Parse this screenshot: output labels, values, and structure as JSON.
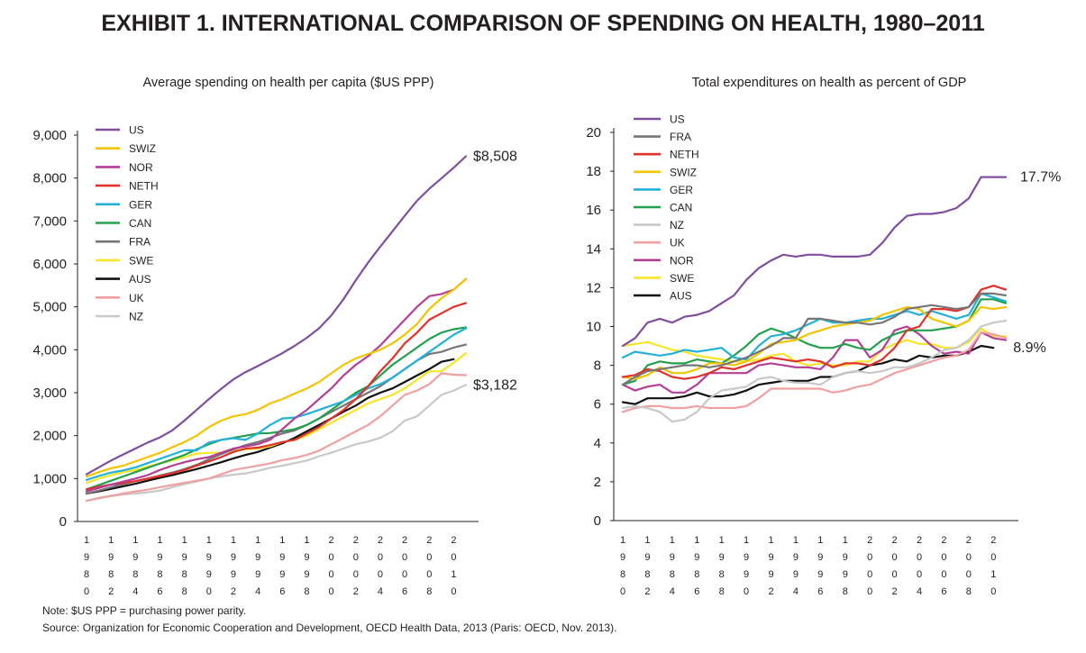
{
  "title": "EXHIBIT 1. INTERNATIONAL COMPARISON OF SPENDING ON HEALTH, 1980–2011",
  "notes": {
    "note": "Note: $US PPP = purchasing power parity.",
    "source": "Source: Organization for Economic Cooperation and Development, OECD Health Data, 2013 (Paris: OECD, Nov. 2013)."
  },
  "colors": {
    "US": "#7f4f9e",
    "SWIZ": "#f5c400",
    "NOR": "#b43e96",
    "NETH": "#e0312b",
    "GER": "#22b1d8",
    "CAN": "#22a04d",
    "FRA": "#767676",
    "SWE": "#f7e52a",
    "AUS": "#111111",
    "UK": "#f0a0a0",
    "NZ": "#c8c8c8"
  },
  "chart_data": [
    {
      "type": "line",
      "title": "Average spending on health per capita ($US PPP)",
      "xlabel": "",
      "ylabel": "",
      "x": [
        1980,
        1981,
        1982,
        1983,
        1984,
        1985,
        1986,
        1987,
        1988,
        1989,
        1990,
        1991,
        1992,
        1993,
        1994,
        1995,
        1996,
        1997,
        1998,
        1999,
        2000,
        2001,
        2002,
        2003,
        2004,
        2005,
        2006,
        2007,
        2008,
        2009,
        2010,
        2011
      ],
      "xlim": [
        1980,
        2011
      ],
      "ylim": [
        0,
        9000
      ],
      "yticks": [
        "0",
        "1,000",
        "2,000",
        "3,000",
        "4,000",
        "5,000",
        "6,000",
        "7,000",
        "8,000",
        "9,000"
      ],
      "xticks": [
        "1980",
        "1982",
        "1984",
        "1986",
        "1988",
        "1990",
        "1992",
        "1994",
        "1996",
        "1998",
        "2000",
        "2002",
        "2004",
        "2006",
        "2008",
        "2010"
      ],
      "annotations": [
        "$8,508",
        "$3,182"
      ],
      "legend": [
        "US",
        "SWIZ",
        "NOR",
        "NETH",
        "GER",
        "CAN",
        "FRA",
        "SWE",
        "AUS",
        "UK",
        "NZ"
      ],
      "series": [
        {
          "name": "US",
          "values": [
            1100,
            1260,
            1420,
            1560,
            1700,
            1840,
            1960,
            2120,
            2350,
            2600,
            2850,
            3090,
            3310,
            3480,
            3620,
            3770,
            3920,
            4090,
            4280,
            4500,
            4800,
            5180,
            5620,
            6030,
            6400,
            6760,
            7120,
            7470,
            7750,
            7990,
            8240,
            8508
          ]
        },
        {
          "name": "SWIZ",
          "values": [
            1050,
            1150,
            1240,
            1300,
            1400,
            1500,
            1600,
            1730,
            1850,
            2000,
            2200,
            2350,
            2450,
            2500,
            2600,
            2750,
            2850,
            2980,
            3100,
            3250,
            3450,
            3650,
            3800,
            3900,
            4000,
            4150,
            4350,
            4600,
            4950,
            5200,
            5400,
            5650
          ]
        },
        {
          "name": "NOR",
          "values": [
            700,
            780,
            860,
            930,
            1000,
            1080,
            1200,
            1300,
            1380,
            1450,
            1500,
            1600,
            1700,
            1750,
            1800,
            1900,
            2150,
            2400,
            2600,
            2850,
            3100,
            3400,
            3650,
            3850,
            4100,
            4400,
            4700,
            5000,
            5250,
            5300,
            5400,
            5650
          ]
        },
        {
          "name": "NETH",
          "values": [
            750,
            810,
            860,
            900,
            940,
            1000,
            1060,
            1120,
            1200,
            1300,
            1400,
            1500,
            1620,
            1700,
            1720,
            1780,
            1850,
            1900,
            2050,
            2200,
            2400,
            2600,
            2850,
            3150,
            3500,
            3800,
            4150,
            4400,
            4700,
            4850,
            5000,
            5090
          ]
        },
        {
          "name": "GER",
          "values": [
            970,
            1060,
            1140,
            1190,
            1260,
            1360,
            1460,
            1560,
            1660,
            1660,
            1840,
            1900,
            1940,
            1900,
            2050,
            2250,
            2400,
            2420,
            2500,
            2600,
            2700,
            2800,
            2950,
            3100,
            3200,
            3350,
            3550,
            3750,
            3950,
            4150,
            4350,
            4500
          ]
        },
        {
          "name": "CAN",
          "values": [
            750,
            850,
            950,
            1050,
            1150,
            1250,
            1350,
            1450,
            1550,
            1680,
            1800,
            1900,
            1950,
            2000,
            2050,
            2060,
            2100,
            2150,
            2250,
            2400,
            2600,
            2800,
            3000,
            3150,
            3400,
            3650,
            3850,
            4050,
            4250,
            4400,
            4480,
            4520
          ]
        },
        {
          "name": "FRA",
          "values": [
            650,
            720,
            800,
            870,
            940,
            1000,
            1070,
            1140,
            1220,
            1320,
            1450,
            1570,
            1680,
            1780,
            1850,
            1950,
            2050,
            2120,
            2250,
            2400,
            2550,
            2700,
            2850,
            3000,
            3150,
            3350,
            3550,
            3750,
            3900,
            3950,
            4050,
            4120
          ]
        },
        {
          "name": "SWE",
          "values": [
            900,
            1000,
            1080,
            1150,
            1200,
            1280,
            1350,
            1420,
            1500,
            1580,
            1600,
            1600,
            1650,
            1680,
            1700,
            1750,
            1850,
            1900,
            2000,
            2150,
            2300,
            2450,
            2600,
            2750,
            2850,
            2950,
            3100,
            3300,
            3500,
            3500,
            3700,
            3920
          ]
        },
        {
          "name": "AUS",
          "values": [
            650,
            700,
            760,
            820,
            880,
            950,
            1020,
            1080,
            1150,
            1220,
            1300,
            1380,
            1470,
            1550,
            1620,
            1720,
            1820,
            1950,
            2100,
            2250,
            2400,
            2560,
            2700,
            2880,
            3000,
            3100,
            3250,
            3400,
            3550,
            3720,
            3780,
            null
          ]
        },
        {
          "name": "UK",
          "values": [
            480,
            550,
            600,
            650,
            700,
            740,
            800,
            850,
            900,
            950,
            1000,
            1100,
            1200,
            1250,
            1300,
            1350,
            1430,
            1480,
            1550,
            1650,
            1800,
            1950,
            2100,
            2250,
            2450,
            2700,
            2950,
            3050,
            3200,
            3450,
            3420,
            3410
          ]
        },
        {
          "name": "NZ",
          "values": [
            480,
            540,
            590,
            630,
            650,
            680,
            720,
            800,
            870,
            930,
            1000,
            1050,
            1090,
            1120,
            1180,
            1250,
            1300,
            1360,
            1420,
            1520,
            1600,
            1700,
            1800,
            1860,
            1950,
            2100,
            2350,
            2450,
            2700,
            2950,
            3050,
            3182
          ]
        }
      ]
    },
    {
      "type": "line",
      "title": "Total expenditures on health as percent of GDP",
      "xlabel": "",
      "ylabel": "",
      "x": [
        1980,
        1981,
        1982,
        1983,
        1984,
        1985,
        1986,
        1987,
        1988,
        1989,
        1990,
        1991,
        1992,
        1993,
        1994,
        1995,
        1996,
        1997,
        1998,
        1999,
        2000,
        2001,
        2002,
        2003,
        2004,
        2005,
        2006,
        2007,
        2008,
        2009,
        2010,
        2011
      ],
      "xlim": [
        1980,
        2011
      ],
      "ylim": [
        0,
        20
      ],
      "yticks": [
        "0",
        "2",
        "4",
        "6",
        "8",
        "10",
        "12",
        "14",
        "16",
        "18",
        "20"
      ],
      "xticks": [
        "1980",
        "1982",
        "1984",
        "1986",
        "1988",
        "1990",
        "1992",
        "1994",
        "1996",
        "1998",
        "2000",
        "2002",
        "2004",
        "2006",
        "2008",
        "2010"
      ],
      "annotations": [
        "17.7%",
        "8.9%"
      ],
      "legend": [
        "US",
        "FRA",
        "NETH",
        "SWIZ",
        "GER",
        "CAN",
        "NZ",
        "UK",
        "NOR",
        "SWE",
        "AUS"
      ],
      "series": [
        {
          "name": "US",
          "values": [
            9.0,
            9.4,
            10.2,
            10.4,
            10.2,
            10.5,
            10.6,
            10.8,
            11.2,
            11.6,
            12.4,
            13.0,
            13.4,
            13.7,
            13.6,
            13.7,
            13.7,
            13.6,
            13.6,
            13.6,
            13.7,
            14.3,
            15.1,
            15.7,
            15.8,
            15.8,
            15.9,
            16.1,
            16.6,
            17.7,
            17.7,
            17.7
          ]
        },
        {
          "name": "FRA",
          "values": [
            7.0,
            7.4,
            7.7,
            7.8,
            7.9,
            8.0,
            8.0,
            7.9,
            8.0,
            8.2,
            8.4,
            8.7,
            9.0,
            9.4,
            9.4,
            10.4,
            10.4,
            10.3,
            10.2,
            10.2,
            10.1,
            10.2,
            10.5,
            10.9,
            11.0,
            11.1,
            11.0,
            10.9,
            11.0,
            11.7,
            11.7,
            11.6
          ]
        },
        {
          "name": "NETH",
          "values": [
            7.4,
            7.5,
            7.8,
            7.7,
            7.4,
            7.3,
            7.4,
            7.6,
            7.9,
            7.8,
            8.0,
            8.2,
            8.4,
            8.3,
            8.2,
            8.3,
            8.2,
            7.9,
            8.1,
            8.1,
            8.0,
            8.3,
            8.9,
            9.8,
            10.0,
            10.9,
            10.9,
            10.8,
            11.0,
            11.9,
            12.1,
            11.9
          ]
        },
        {
          "name": "SWIZ",
          "values": [
            7.4,
            7.3,
            7.5,
            7.9,
            7.6,
            7.6,
            7.8,
            8.1,
            8.1,
            8.0,
            8.2,
            8.6,
            9.1,
            9.2,
            9.3,
            9.6,
            9.8,
            10.0,
            10.1,
            10.2,
            10.3,
            10.6,
            10.8,
            11.0,
            10.9,
            10.4,
            10.2,
            10.0,
            10.3,
            11.0,
            10.9,
            11.0
          ]
        },
        {
          "name": "GER",
          "values": [
            8.4,
            8.7,
            8.6,
            8.5,
            8.6,
            8.8,
            8.7,
            8.8,
            8.9,
            8.4,
            8.3,
            9.0,
            9.5,
            9.6,
            9.8,
            10.1,
            10.4,
            10.2,
            10.2,
            10.3,
            10.4,
            10.4,
            10.6,
            10.8,
            10.6,
            10.8,
            10.6,
            10.4,
            10.6,
            11.7,
            11.5,
            11.3
          ]
        },
        {
          "name": "CAN",
          "values": [
            7.0,
            7.2,
            8.0,
            8.2,
            8.1,
            8.1,
            8.3,
            8.2,
            8.1,
            8.5,
            9.0,
            9.6,
            9.9,
            9.7,
            9.4,
            9.1,
            8.9,
            8.9,
            9.1,
            8.9,
            8.8,
            9.3,
            9.6,
            9.8,
            9.8,
            9.8,
            9.9,
            10.0,
            10.3,
            11.4,
            11.4,
            11.2
          ]
        },
        {
          "name": "NZ",
          "values": [
            5.8,
            5.9,
            5.8,
            5.6,
            5.1,
            5.2,
            5.6,
            6.3,
            6.7,
            6.8,
            6.9,
            7.3,
            7.4,
            7.2,
            7.1,
            7.1,
            7.0,
            7.4,
            7.6,
            7.7,
            7.6,
            7.7,
            7.9,
            7.9,
            8.1,
            8.4,
            8.8,
            8.9,
            9.3,
            10.0,
            10.2,
            10.3
          ]
        },
        {
          "name": "UK",
          "values": [
            5.6,
            5.8,
            5.9,
            5.9,
            5.8,
            5.8,
            5.9,
            5.8,
            5.8,
            5.8,
            5.9,
            6.3,
            6.8,
            6.8,
            6.8,
            6.8,
            6.8,
            6.6,
            6.7,
            6.9,
            7.0,
            7.3,
            7.6,
            7.8,
            8.0,
            8.2,
            8.4,
            8.5,
            8.8,
            9.7,
            9.6,
            9.4
          ]
        },
        {
          "name": "NOR",
          "values": [
            7.0,
            6.7,
            6.9,
            7.0,
            6.6,
            6.6,
            7.0,
            7.6,
            7.6,
            7.6,
            7.6,
            8.0,
            8.1,
            8.0,
            7.9,
            7.9,
            7.8,
            8.4,
            9.3,
            9.3,
            8.4,
            8.8,
            9.8,
            10.0,
            9.6,
            9.0,
            8.6,
            8.7,
            8.6,
            9.7,
            9.4,
            9.3
          ]
        },
        {
          "name": "SWE",
          "values": [
            9.0,
            9.1,
            9.2,
            9.0,
            8.8,
            8.7,
            8.5,
            8.4,
            8.3,
            8.2,
            8.2,
            8.3,
            8.5,
            8.6,
            8.2,
            8.0,
            8.1,
            8.0,
            8.0,
            8.2,
            8.2,
            8.8,
            9.1,
            9.3,
            9.1,
            9.1,
            8.9,
            8.9,
            9.2,
            9.9,
            9.5,
            9.5
          ]
        },
        {
          "name": "AUS",
          "values": [
            6.1,
            6.0,
            6.3,
            6.3,
            6.3,
            6.4,
            6.6,
            6.4,
            6.4,
            6.5,
            6.7,
            7.0,
            7.1,
            7.2,
            7.2,
            7.2,
            7.4,
            7.4,
            7.6,
            7.7,
            8.0,
            8.1,
            8.3,
            8.2,
            8.5,
            8.4,
            8.5,
            8.5,
            8.7,
            9.0,
            8.9,
            null
          ]
        }
      ]
    }
  ]
}
